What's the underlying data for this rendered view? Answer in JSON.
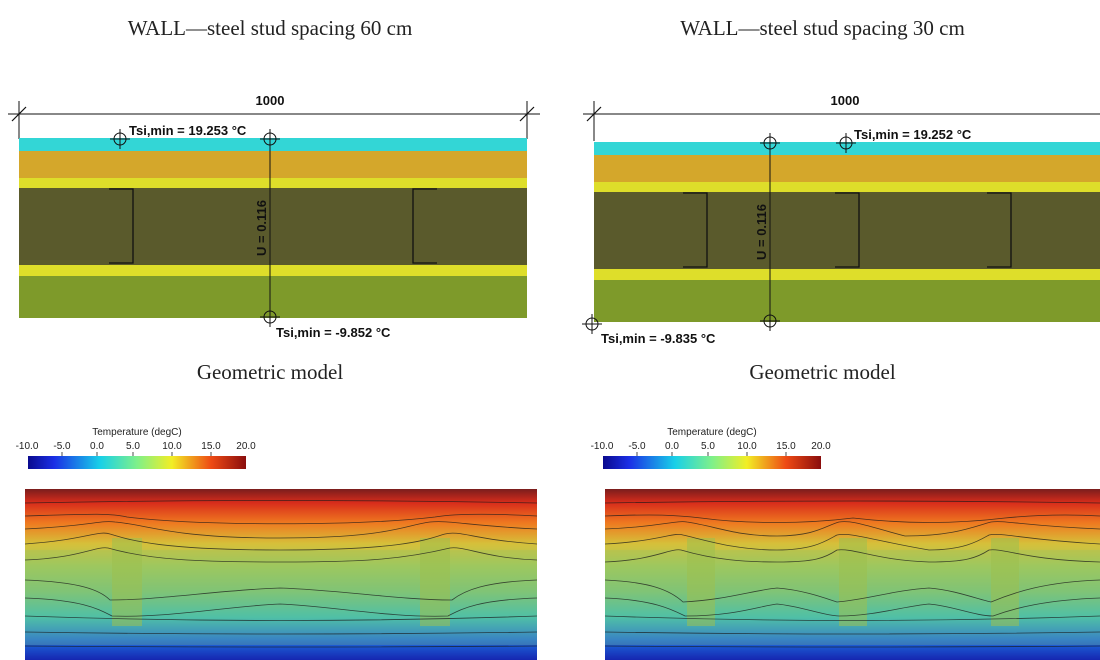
{
  "panels": [
    {
      "title": "WALL—steel stud spacing 60 cm",
      "dimension": "1000",
      "tsi_top": "Tsi,min = 19.253 °C",
      "tsi_bottom": "Tsi,min = -9.852 °C",
      "u_value": "U = 0.116",
      "caption": "Geometric model",
      "colorbar_title": "Temperature (degC)",
      "colorbar_ticks": [
        "-10.0",
        "-5.0",
        "0.0",
        "5.0",
        "10.0",
        "15.0",
        "20.0"
      ]
    },
    {
      "title": "WALL—steel stud spacing 30 cm",
      "dimension": "1000",
      "tsi_top": "Tsi,min = 19.252 °C",
      "tsi_bottom": "Tsi,min = -9.835 °C",
      "u_value": "U = 0.116",
      "caption": "Geometric model",
      "colorbar_title": "Temperature (degC)",
      "colorbar_ticks": [
        "-10.0",
        "-5.0",
        "0.0",
        "5.0",
        "10.0",
        "15.0",
        "20.0"
      ]
    }
  ],
  "colors": {
    "interior_layer": "#33d6d6",
    "board_layer": "#d4a72b",
    "membrane": "#dede2a",
    "stud_cavity": "#5a5a2c",
    "exterior_layer": "#7e9a2a"
  }
}
